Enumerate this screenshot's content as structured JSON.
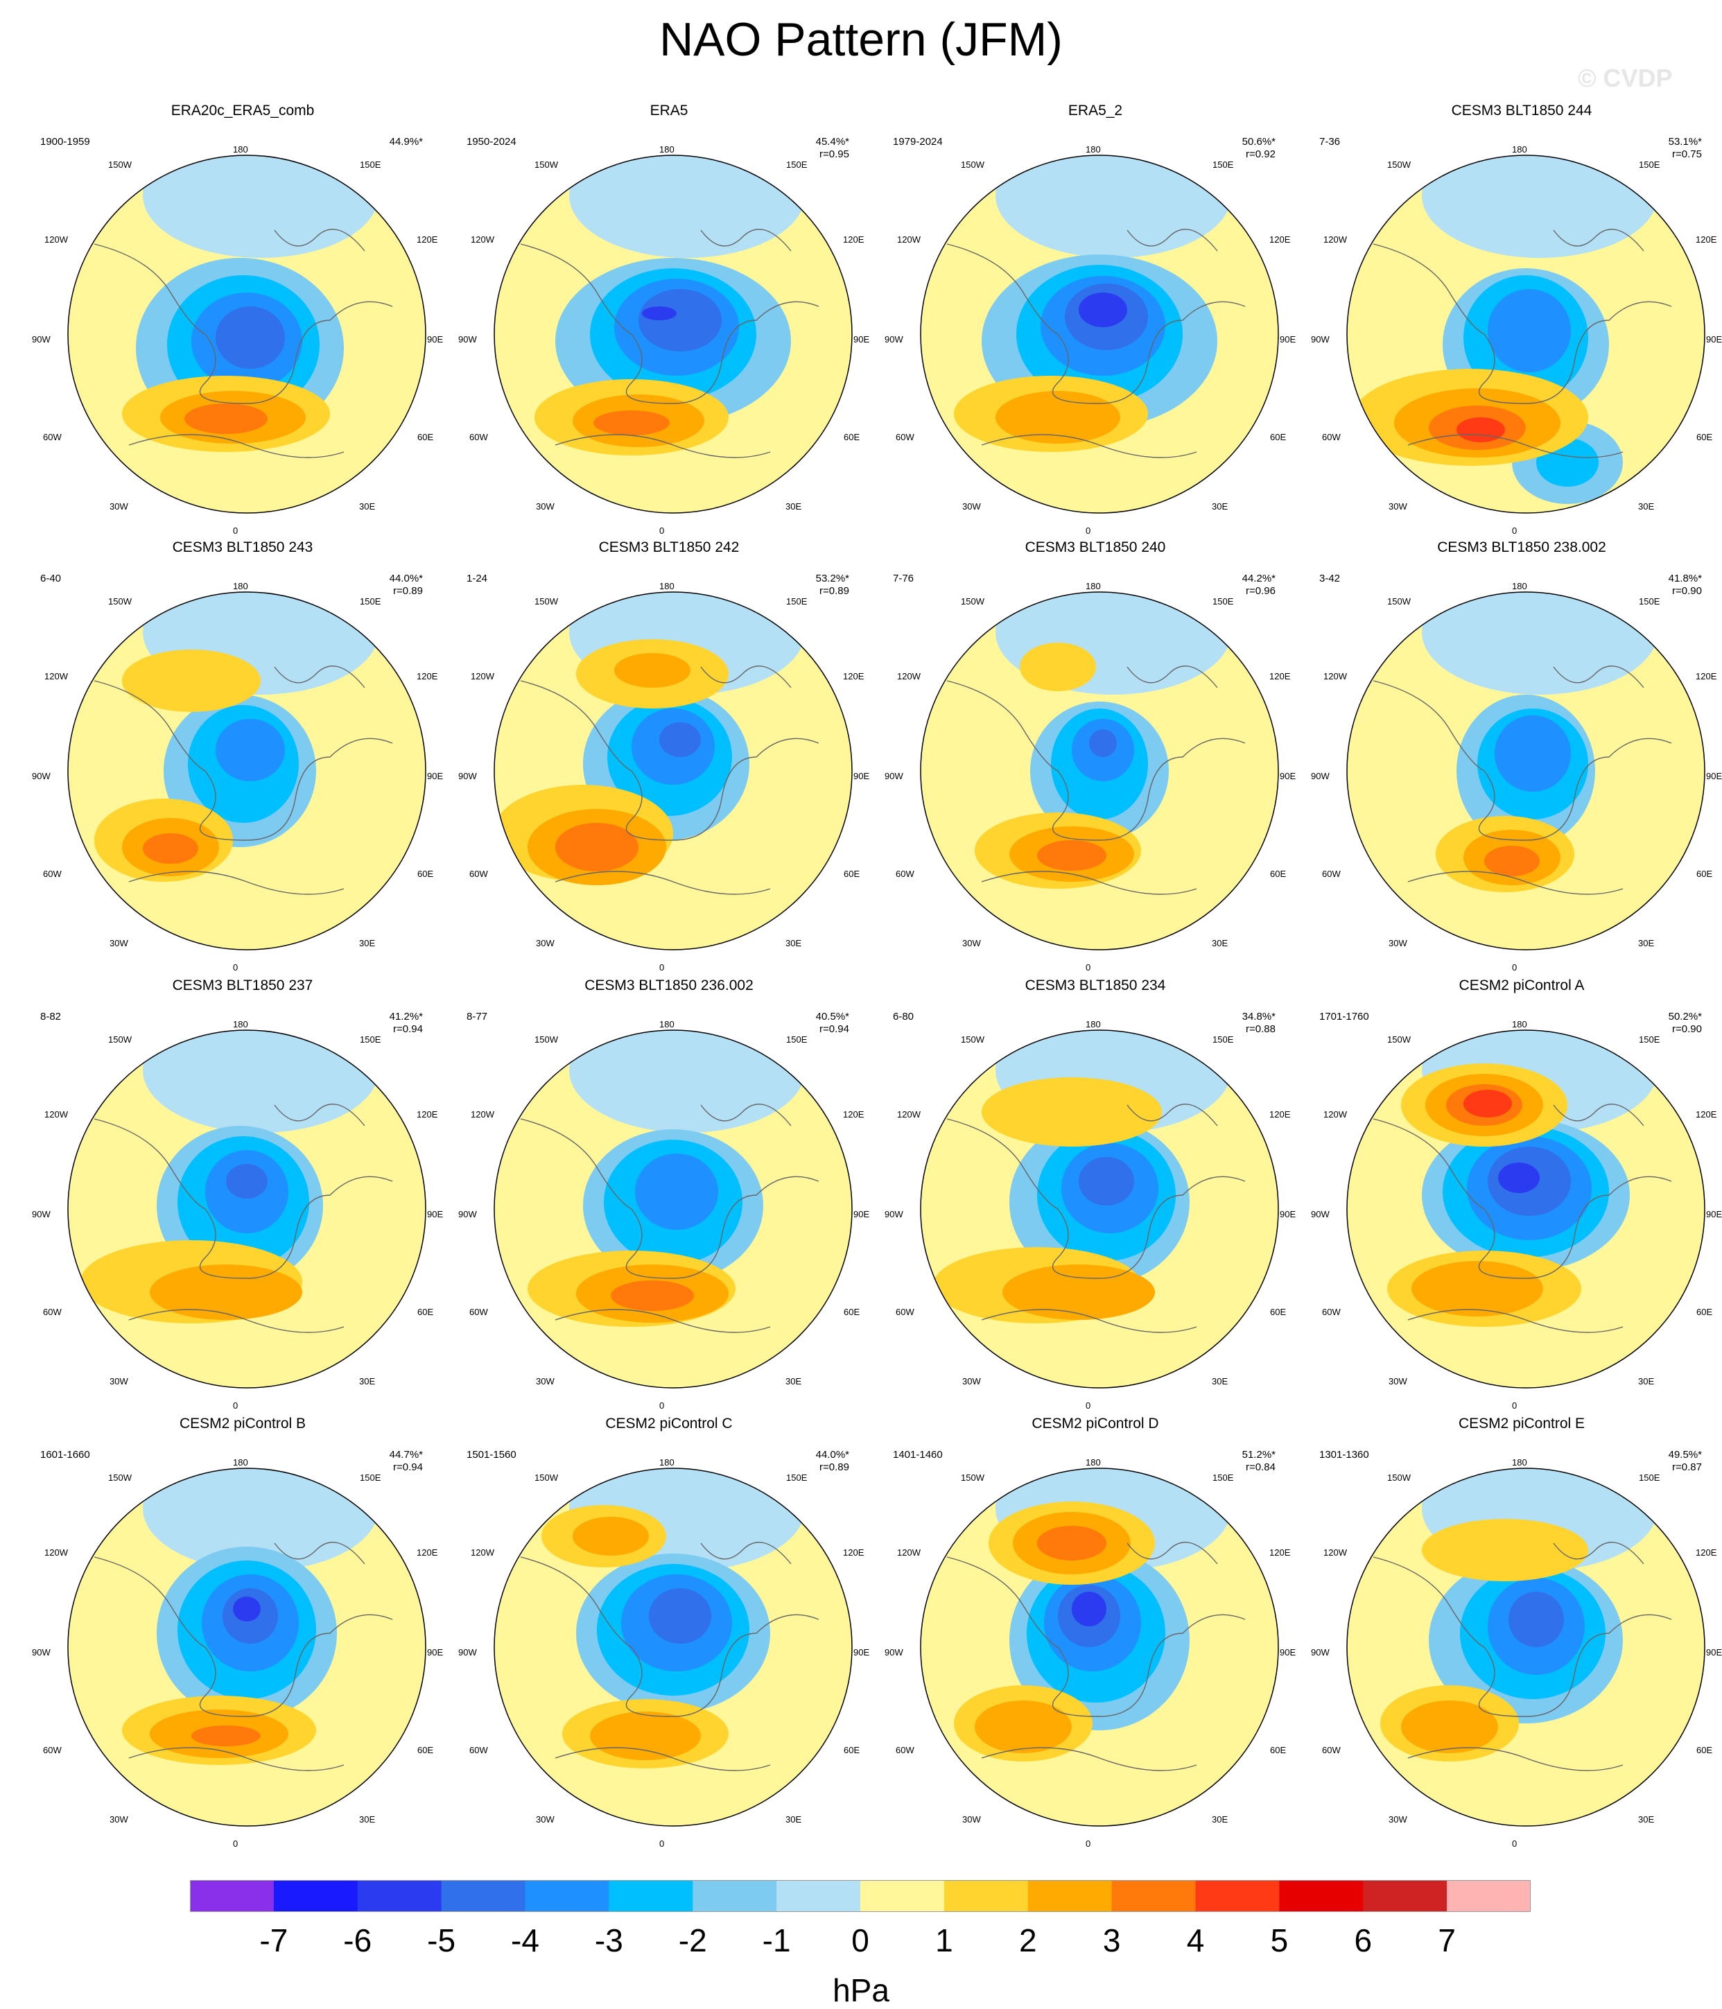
{
  "title": "NAO Pattern (JFM)",
  "watermark": "© CVDP",
  "unit_label": "hPa",
  "lon_labels": {
    "top": "180",
    "top_left": "150W",
    "top_right": "150E",
    "upper_left": "120W",
    "upper_right": "120E",
    "left": "90W",
    "right": "90E",
    "lower_left": "60W",
    "lower_right": "60E",
    "bottom_left": "30W",
    "bottom_right": "30E",
    "bottom": "0"
  },
  "colorbar": {
    "tick_labels": [
      "-7",
      "-6",
      "-5",
      "-4",
      "-3",
      "-2",
      "-1",
      "0",
      "1",
      "2",
      "3",
      "4",
      "5",
      "6",
      "7"
    ],
    "colors": [
      "#8a30ea",
      "#1a1aff",
      "#2b3cf0",
      "#3070ea",
      "#1e90ff",
      "#00bfff",
      "#7ecbf2",
      "#b3e0f5",
      "#fff799",
      "#ffd42e",
      "#ffaa00",
      "#ff7a0a",
      "#ff3a14",
      "#e60000",
      "#cf2222",
      "#ffb4b4"
    ]
  },
  "panels": [
    {
      "title": "ERA20c_ERA5_comb",
      "period": "1900-1959",
      "pct": "44.9%*",
      "r": ""
    },
    {
      "title": "ERA5",
      "period": "1950-2024",
      "pct": "45.4%*",
      "r": "r=0.95"
    },
    {
      "title": "ERA5_2",
      "period": "1979-2024",
      "pct": "50.6%*",
      "r": "r=0.92"
    },
    {
      "title": "CESM3 BLT1850 244",
      "period": "7-36",
      "pct": "53.1%*",
      "r": "r=0.75"
    },
    {
      "title": "CESM3 BLT1850 243",
      "period": "6-40",
      "pct": "44.0%*",
      "r": "r=0.89"
    },
    {
      "title": "CESM3 BLT1850 242",
      "period": "1-24",
      "pct": "53.2%*",
      "r": "r=0.89"
    },
    {
      "title": "CESM3 BLT1850 240",
      "period": "7-76",
      "pct": "44.2%*",
      "r": "r=0.96"
    },
    {
      "title": "CESM3 BLT1850 238.002",
      "period": "3-42",
      "pct": "41.8%*",
      "r": "r=0.90"
    },
    {
      "title": "CESM3 BLT1850 237",
      "period": "8-82",
      "pct": "41.2%*",
      "r": "r=0.94"
    },
    {
      "title": "CESM3 BLT1850 236.002",
      "period": "8-77",
      "pct": "40.5%*",
      "r": "r=0.94"
    },
    {
      "title": "CESM3 BLT1850 234",
      "period": "6-80",
      "pct": "34.8%*",
      "r": "r=0.88"
    },
    {
      "title": "CESM2 piControl A",
      "period": "1701-1760",
      "pct": "50.2%*",
      "r": "r=0.90"
    },
    {
      "title": "CESM2 piControl B",
      "period": "1601-1660",
      "pct": "44.7%*",
      "r": "r=0.94"
    },
    {
      "title": "CESM2 piControl C",
      "period": "1501-1560",
      "pct": "44.0%*",
      "r": "r=0.89"
    },
    {
      "title": "CESM2 piControl D",
      "period": "1401-1460",
      "pct": "51.2%*",
      "r": "r=0.84"
    },
    {
      "title": "CESM2 piControl E",
      "period": "1301-1360",
      "pct": "49.5%*",
      "r": "r=0.87"
    }
  ]
}
